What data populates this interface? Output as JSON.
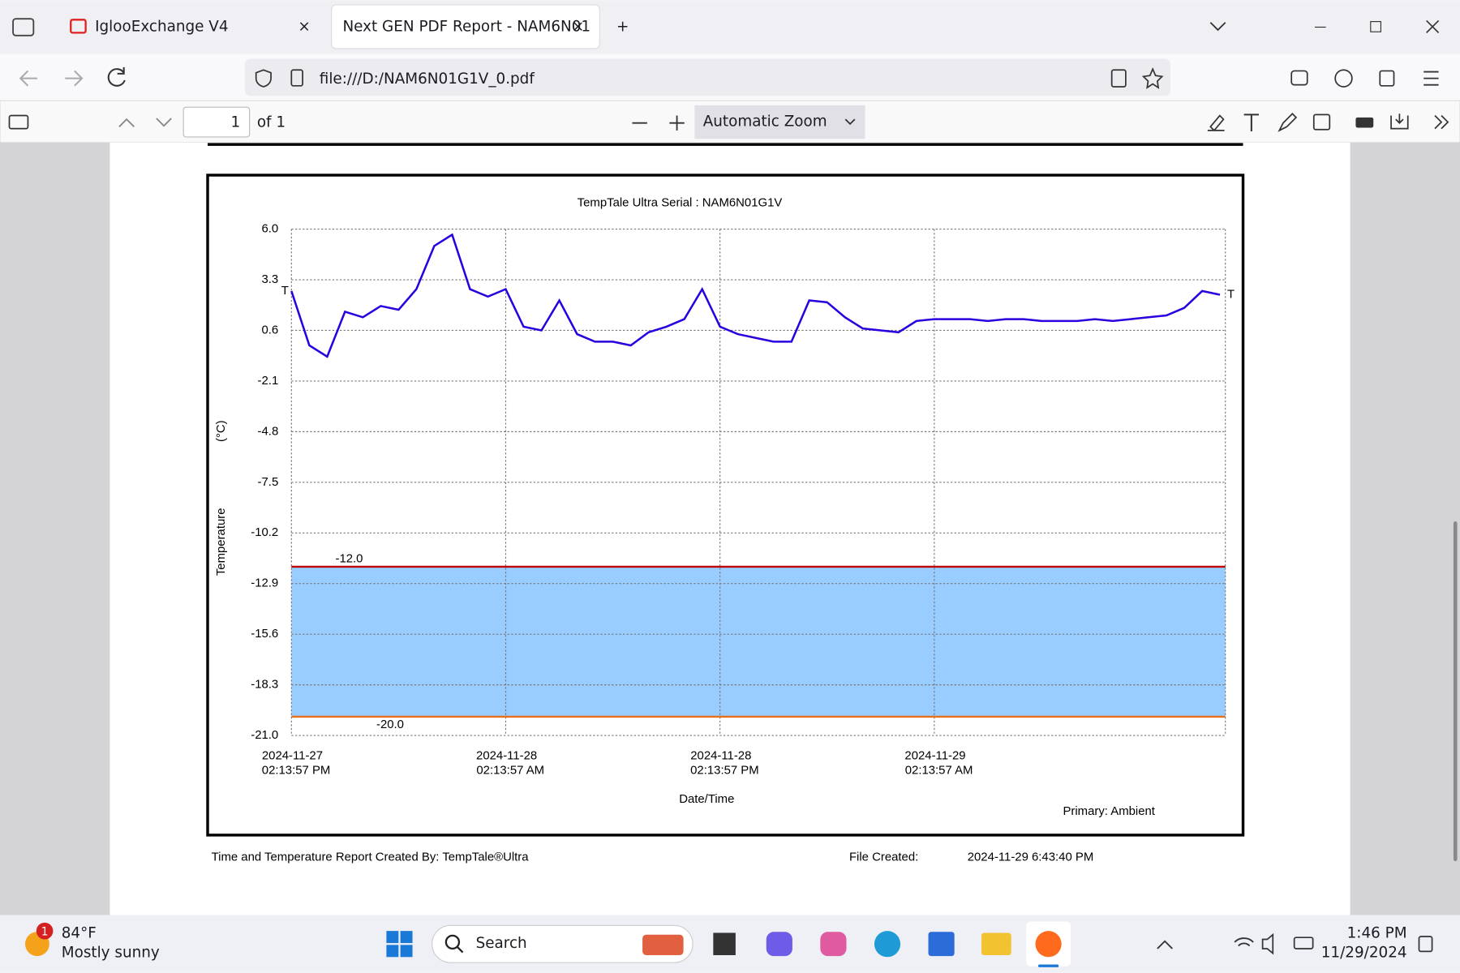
{
  "browser": {
    "tabs": [
      {
        "title": "IglooExchange V4"
      },
      {
        "title": "Next GEN PDF Report - NAM6N01"
      }
    ],
    "url": "file:///D:/NAM6N01G1V_0.pdf"
  },
  "pdf_toolbar": {
    "page": "1",
    "of": "of 1",
    "zoom": "Automatic Zoom"
  },
  "chart_data": {
    "type": "line",
    "title": "TempTale Ultra  Serial : NAM6N01G1V",
    "ylabel": "Temperature",
    "yunit": "(°C)",
    "xlabel": "Date/Time",
    "note": "Primary: Ambient",
    "end_marker": "T",
    "color": "#2a00e0",
    "x": [
      "2024-11-27T14:13:57",
      "2024-11-27T15:13:57",
      "2024-11-27T16:13:57",
      "2024-11-27T17:13:57",
      "2024-11-27T18:13:57",
      "2024-11-27T19:13:57",
      "2024-11-27T20:13:57",
      "2024-11-27T21:13:57",
      "2024-11-27T22:13:57",
      "2024-11-27T23:13:57",
      "2024-11-28T00:13:57",
      "2024-11-28T01:13:57",
      "2024-11-28T02:13:57",
      "2024-11-28T03:13:57",
      "2024-11-28T04:13:57",
      "2024-11-28T05:13:57",
      "2024-11-28T06:13:57",
      "2024-11-28T07:13:57",
      "2024-11-28T08:13:57",
      "2024-11-28T09:13:57",
      "2024-11-28T10:13:57",
      "2024-11-28T11:13:57",
      "2024-11-28T12:13:57",
      "2024-11-28T13:13:57",
      "2024-11-28T14:13:57",
      "2024-11-28T15:13:57",
      "2024-11-28T16:13:57",
      "2024-11-28T17:13:57",
      "2024-11-28T18:13:57",
      "2024-11-28T19:13:57",
      "2024-11-28T20:13:57",
      "2024-11-28T21:13:57",
      "2024-11-28T22:13:57",
      "2024-11-28T23:13:57",
      "2024-11-29T00:13:57",
      "2024-11-29T01:13:57",
      "2024-11-29T02:13:57",
      "2024-11-29T03:13:57",
      "2024-11-29T04:13:57",
      "2024-11-29T05:13:57",
      "2024-11-29T06:13:57",
      "2024-11-29T07:13:57",
      "2024-11-29T08:13:57",
      "2024-11-29T09:13:57",
      "2024-11-29T10:13:57",
      "2024-11-29T11:13:57",
      "2024-11-29T12:13:57",
      "2024-11-29T13:13:57",
      "2024-11-29T14:13:57",
      "2024-11-29T15:13:57",
      "2024-11-29T16:13:57",
      "2024-11-29T17:13:57",
      "2024-11-29T18:13:57"
    ],
    "values": [
      2.7,
      -0.2,
      -0.8,
      1.6,
      1.3,
      1.9,
      1.7,
      2.8,
      5.1,
      5.7,
      2.8,
      2.4,
      2.8,
      0.8,
      0.6,
      2.2,
      0.4,
      0.0,
      0.0,
      -0.2,
      0.5,
      0.8,
      1.2,
      2.8,
      0.8,
      0.4,
      0.2,
      0.0,
      0.0,
      2.2,
      2.1,
      1.3,
      0.7,
      0.6,
      0.5,
      1.1,
      1.2,
      1.2,
      1.2,
      1.1,
      1.2,
      1.2,
      1.1,
      1.1,
      1.1,
      1.2,
      1.1,
      1.2,
      1.3,
      1.4,
      1.8,
      2.7,
      2.5
    ],
    "xlim": [
      "2024-11-27T14:13:57",
      "2024-11-29T18:32:00"
    ],
    "xticks": [
      {
        "value": "2024-11-27T14:13:57",
        "label": [
          "2024-11-27",
          "02:13:57 PM"
        ]
      },
      {
        "value": "2024-11-28T02:13:57",
        "label": [
          "2024-11-28",
          "02:13:57 AM"
        ]
      },
      {
        "value": "2024-11-28T14:13:57",
        "label": [
          "2024-11-28",
          "02:13:57 PM"
        ]
      },
      {
        "value": "2024-11-29T02:13:57",
        "label": [
          "2024-11-29",
          "02:13:57 AM"
        ]
      }
    ],
    "ylim": [
      -21,
      6
    ],
    "yticks": [
      {
        "value": 6,
        "label": "6.0"
      },
      3.3,
      0.6,
      -2.1,
      -4.8,
      -7.5,
      -10.2,
      -12.9,
      -15.6,
      -18.3,
      {
        "value": -21,
        "label": "-21.0"
      }
    ],
    "grid": true,
    "band_color": "#99ccff",
    "thresholds": [
      {
        "value": -12,
        "label": "-12.0",
        "color": "#c00000"
      },
      {
        "value": -20,
        "label": "-20.0",
        "color": "#e8701c"
      }
    ]
  },
  "footer": {
    "created_by": "Time and Temperature Report Created By:  TempTale®Ultra",
    "file_created_label": "File Created:",
    "file_created": "2024-11-29  6:43:40 PM"
  },
  "taskbar": {
    "badge": "1",
    "weather_temp": "84°F",
    "weather_desc": "Mostly sunny",
    "search": "Search",
    "time": "1:46 PM",
    "date": "11/29/2024"
  }
}
